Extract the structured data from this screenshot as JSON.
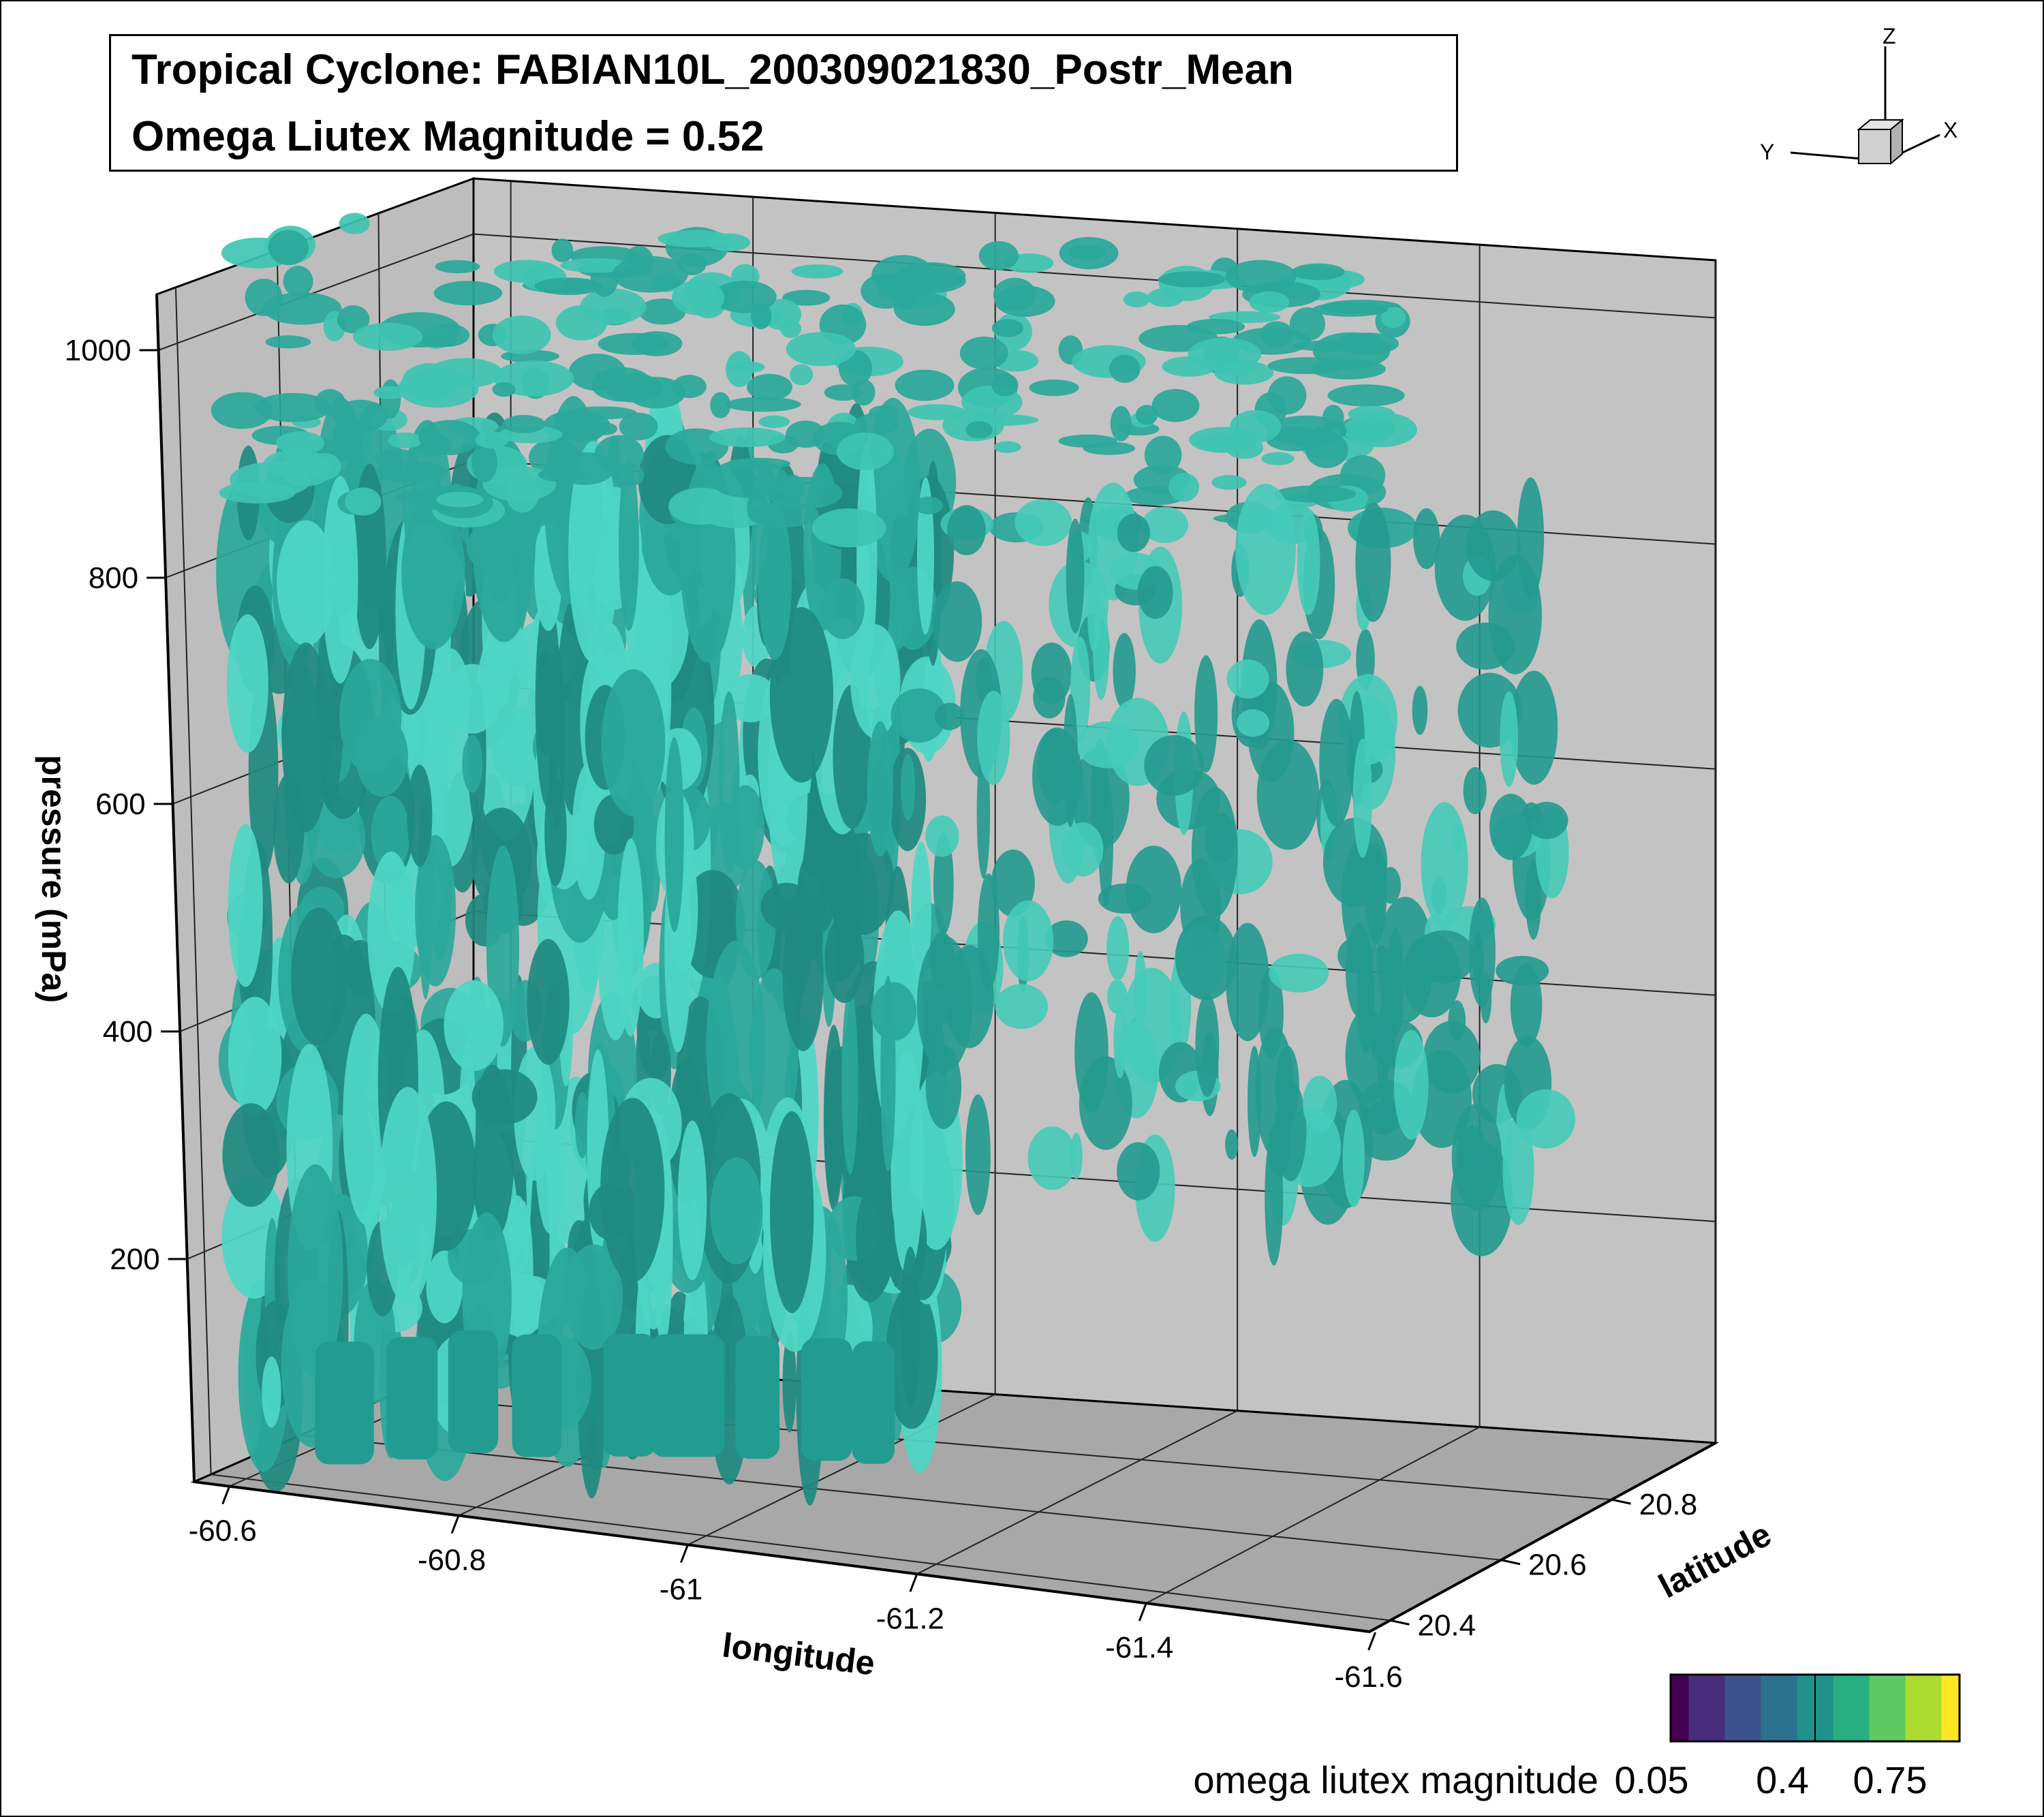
{
  "title": {
    "line1": "Tropical Cyclone: FABIAN10L_200309021830_Postr_Mean",
    "line2": "Omega Liutex Magnitude = 0.52"
  },
  "chart_data": {
    "type": "3d-isosurface",
    "title": "Tropical Cyclone: FABIAN10L_200309021830_Postr_Mean",
    "subtitle": "Omega Liutex Magnitude = 0.52",
    "isosurface_value": 0.52,
    "isosurface_color": "#2aa89a",
    "xlabel": "longitude",
    "ylabel": "latitude",
    "zlabel": "pressure (mPa)",
    "x_ticks": [
      "-60.6",
      "-60.8",
      "-61",
      "-61.2",
      "-61.4",
      "-61.6"
    ],
    "y_ticks": [
      "20.4",
      "20.6",
      "20.8"
    ],
    "z_ticks": [
      "200",
      "400",
      "600",
      "800",
      "1000"
    ],
    "grid": true,
    "orientation_axes": [
      "Z",
      "Y",
      "X"
    ],
    "colorbar": {
      "label": "omega liutex magnitude",
      "ticks": [
        "0.05",
        "0.4",
        "0.75"
      ],
      "range": [
        0.05,
        0.75
      ],
      "colors": [
        "#440154",
        "#472d7b",
        "#3b528b",
        "#2c728e",
        "#21918c",
        "#28ae80",
        "#5ec962",
        "#addc30",
        "#fde725"
      ]
    }
  }
}
